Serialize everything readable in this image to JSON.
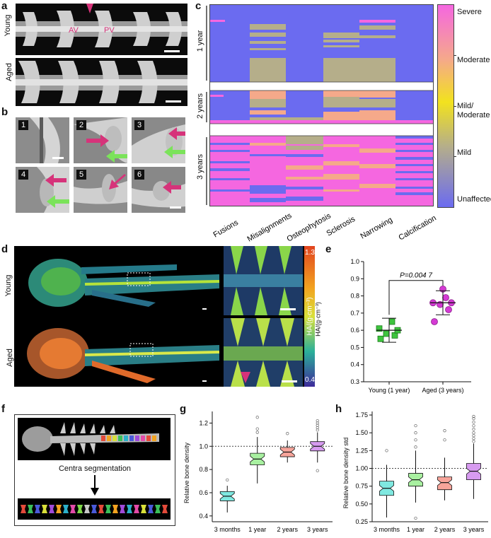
{
  "panels": {
    "a": "a",
    "b": "b",
    "c": "c",
    "d": "d",
    "e": "e",
    "f": "f",
    "g": "g",
    "h": "h"
  },
  "panel_a": {
    "row_labels": [
      "Young",
      "Aged"
    ],
    "annotations": [
      "AV",
      "PV"
    ],
    "arrow_color": "#d6337a"
  },
  "panel_b": {
    "tiles": [
      "1",
      "2",
      "3",
      "4",
      "5",
      "6"
    ],
    "arrow_colors": {
      "magenta": "#d6337a",
      "green": "#7be35a"
    }
  },
  "panel_c": {
    "row_groups": [
      "1 year",
      "2 years",
      "3 years"
    ],
    "columns": [
      "Fusions",
      "Misalignments",
      "Osteophytosis",
      "Sclerosis",
      "Narrowing",
      "Calcification"
    ],
    "colorbar_labels": [
      "Severe",
      "Moderate",
      "Mild/\nModerate",
      "Mild",
      "Unaffected"
    ],
    "colors": {
      "unaffected": "#6b6bf0",
      "mild": "#b5ae8a",
      "moderate": "#f5a98a",
      "severe": "#f567e0"
    }
  },
  "panel_d": {
    "row_labels": [
      "Young",
      "Aged"
    ],
    "colorbar_top": "1.3",
    "colorbar_bottom": "0.4",
    "colorbar_label": "HA/(g·cm⁻³)"
  },
  "panel_e": {
    "chart_data": {
      "type": "scatter",
      "categories": [
        "Young (1 year)",
        "Aged (3 years)"
      ],
      "ylabel": "HA/(g·cm⁻³)",
      "ylim": [
        0.3,
        1.0
      ],
      "yticks": [
        "1.0",
        "0.9",
        "0.8",
        "0.7",
        "0.6",
        "0.5",
        "0.4",
        "0.3"
      ],
      "series": [
        {
          "values": [
            0.55,
            0.57,
            0.58,
            0.6,
            0.61,
            0.65
          ],
          "color": "#3ec43e",
          "marker": "square"
        },
        {
          "values": [
            0.65,
            0.72,
            0.75,
            0.76,
            0.76,
            0.79,
            0.84
          ],
          "color": "#d43ad4",
          "marker": "circle"
        }
      ],
      "means": [
        0.6,
        0.76
      ],
      "sd": [
        0.07,
        0.07
      ],
      "annotation": "P=0.004 7"
    }
  },
  "panel_f": {
    "arrow_text": "Centra segmentation"
  },
  "panel_g": {
    "chart_data": {
      "type": "boxplot",
      "categories": [
        "3 months",
        "1 year",
        "2 years",
        "3 years"
      ],
      "ylabel": "Relative bone density",
      "ylim": [
        0.35,
        1.3
      ],
      "yticks": [
        "1.2",
        "1.0",
        "0.8",
        "0.6",
        "0.4"
      ],
      "reference_line": 1.0,
      "boxes": [
        {
          "q1": 0.53,
          "median": 0.57,
          "q3": 0.61,
          "lo": 0.43,
          "hi": 0.66,
          "color": "#7fe8e0",
          "outliers": [
            0.71
          ]
        },
        {
          "q1": 0.84,
          "median": 0.89,
          "q3": 0.94,
          "lo": 0.68,
          "hi": 1.08,
          "color": "#a8f0a0",
          "outliers": [
            1.12,
            1.15,
            1.25
          ]
        },
        {
          "q1": 0.91,
          "median": 0.95,
          "q3": 0.99,
          "lo": 0.86,
          "hi": 1.05,
          "color": "#f7a49a",
          "outliers": [
            1.11
          ]
        },
        {
          "q1": 0.96,
          "median": 1.0,
          "q3": 1.04,
          "lo": 0.86,
          "hi": 1.12,
          "color": "#d79bf0",
          "outliers": [
            1.14,
            1.16,
            1.18,
            1.2,
            1.22,
            0.79
          ]
        }
      ]
    }
  },
  "panel_h": {
    "chart_data": {
      "type": "boxplot",
      "categories": [
        "3 months",
        "1 year",
        "2 years",
        "3 years"
      ],
      "ylabel": "Relative bone density std",
      "ylim": [
        0.25,
        1.8
      ],
      "yticks": [
        "1.75",
        "1.50",
        "1.25",
        "1.00",
        "0.75",
        "0.50",
        "0.25"
      ],
      "reference_line": 1.0,
      "boxes": [
        {
          "q1": 0.62,
          "median": 0.72,
          "q3": 0.82,
          "lo": 0.31,
          "hi": 1.05,
          "color": "#7fe8e0",
          "outliers": [
            1.25
          ]
        },
        {
          "q1": 0.75,
          "median": 0.84,
          "q3": 0.93,
          "lo": 0.52,
          "hi": 1.25,
          "color": "#a8f0a0",
          "outliers": [
            1.3,
            1.4,
            1.5,
            1.6,
            0.3
          ]
        },
        {
          "q1": 0.7,
          "median": 0.8,
          "q3": 0.88,
          "lo": 0.55,
          "hi": 1.15,
          "color": "#f7a49a",
          "outliers": [
            1.4,
            1.53
          ]
        },
        {
          "q1": 0.84,
          "median": 0.96,
          "q3": 1.07,
          "lo": 0.57,
          "hi": 1.35,
          "color": "#d79bf0",
          "outliers": [
            1.38,
            1.42,
            1.46,
            1.5,
            1.55,
            1.6,
            1.65,
            1.7,
            1.73
          ]
        }
      ]
    }
  }
}
